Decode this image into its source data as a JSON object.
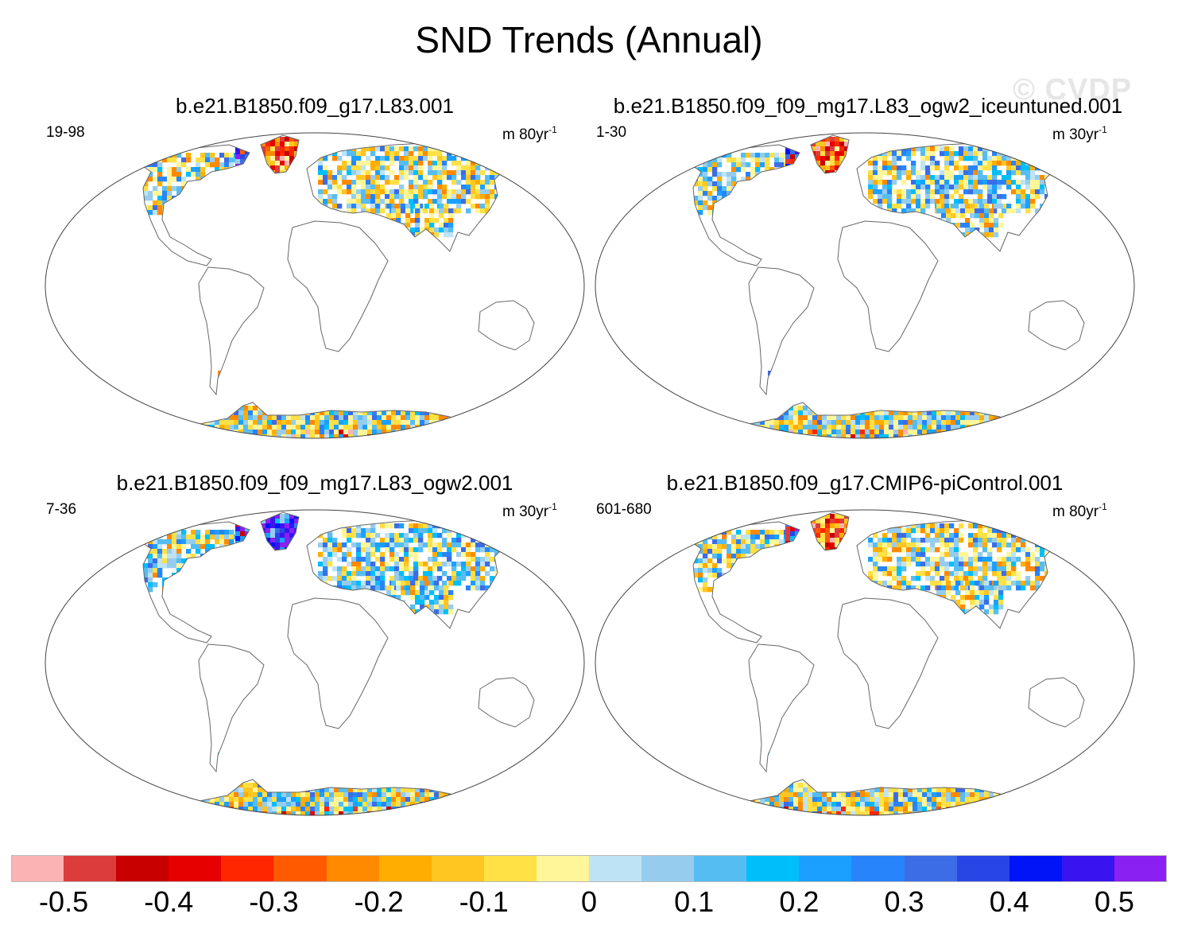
{
  "title": "SND Trends (Annual)",
  "watermark": "© CVDP",
  "panels": [
    {
      "title": "b.e21.B1850.f09_g17.L83.001",
      "period": "19-98",
      "units_base": "m 80yr",
      "units_exp": "-1"
    },
    {
      "title": "b.e21.B1850.f09_f09_mg17.L83_ogw2_iceuntuned.001",
      "period": "1-30",
      "units_base": "m 30yr",
      "units_exp": "-1"
    },
    {
      "title": "b.e21.B1850.f09_f09_mg17.L83_ogw2.001",
      "period": "7-36",
      "units_base": "m 30yr",
      "units_exp": "-1"
    },
    {
      "title": "b.e21.B1850.f09_g17.CMIP6-piControl.001",
      "period": "601-680",
      "units_base": "m 80yr",
      "units_exp": "-1"
    }
  ],
  "colorbar": {
    "colors": [
      "#fbb3b3",
      "#dc3c3c",
      "#c80000",
      "#e60000",
      "#ff2600",
      "#ff5a00",
      "#ff8a00",
      "#ffad00",
      "#ffc520",
      "#ffe045",
      "#fff69a",
      "#bee3f5",
      "#96cdee",
      "#56bdf2",
      "#00bef9",
      "#1ba0ff",
      "#2884fa",
      "#3c6ce6",
      "#2846e6",
      "#0014f8",
      "#3a14f0",
      "#8a20f2"
    ],
    "labels": [
      "-0.5",
      "-0.4",
      "-0.3",
      "-0.2",
      "-0.1",
      "0",
      "0.1",
      "0.2",
      "0.3",
      "0.4",
      "0.5"
    ]
  }
}
